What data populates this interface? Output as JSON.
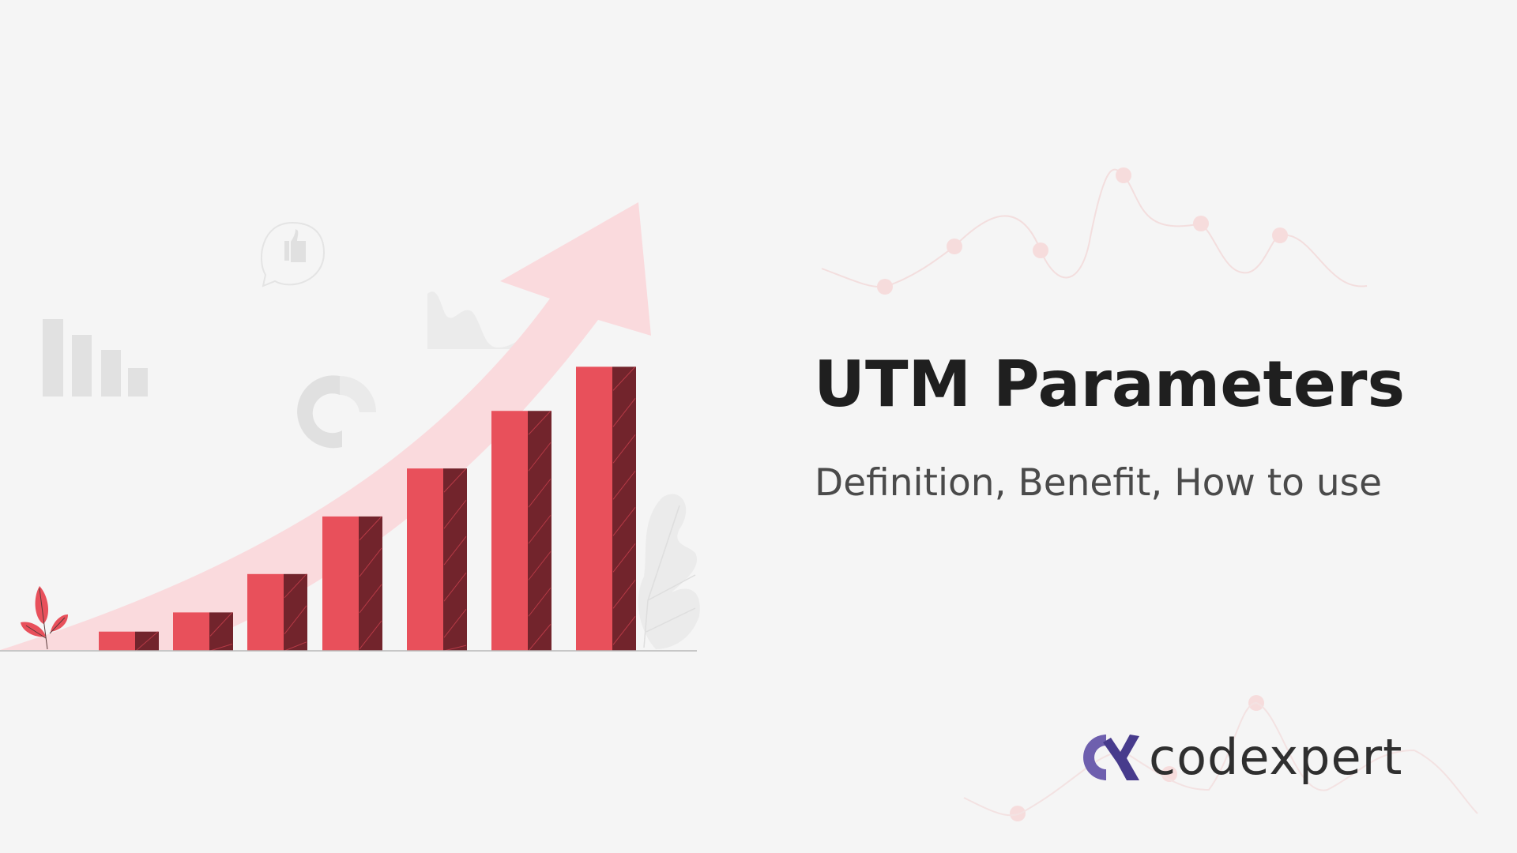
{
  "title": "UTM Parameters",
  "subtitle": "Definition, Benefit, How to use",
  "brand": {
    "name": "codexpert",
    "logo_icon": "alpha-logo-icon",
    "logo_color": "#5a4a9e"
  },
  "colors": {
    "bar_front": "#e8505b",
    "bar_side": "#72242c",
    "arrow": "#fadadd",
    "background": "#f5f5f5",
    "title": "#1f1f1f"
  },
  "illustration": {
    "bar_levels": [
      1,
      2,
      4,
      7,
      9.5,
      12.5,
      14.8
    ],
    "icons": [
      "thumbs-up-bubble-icon",
      "bar-chart-icon",
      "donut-chart-icon",
      "area-chart-icon",
      "plant-icon",
      "leaf-icon",
      "growth-arrow-icon"
    ]
  }
}
